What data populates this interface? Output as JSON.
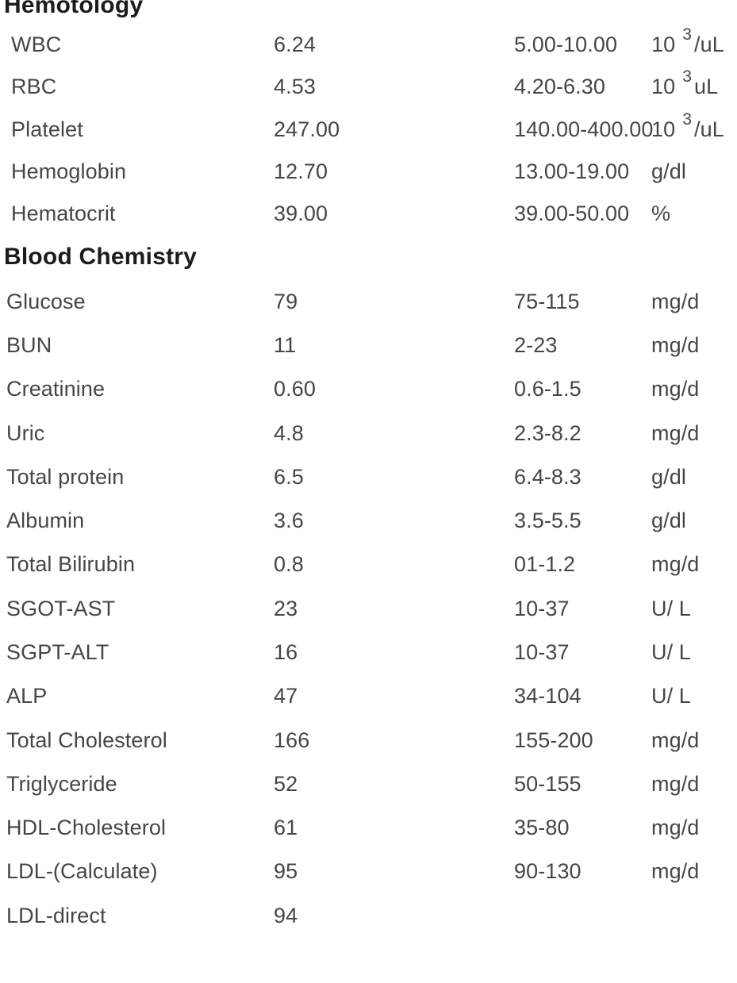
{
  "report": {
    "background": "#ffffff",
    "heading_color": "#1c1c1c",
    "text_color": "#464646",
    "sections": [
      {
        "id": "hematology",
        "heading": "Hemotology",
        "rows": [
          {
            "name": "WBC",
            "value": "6.24",
            "range": "5.00-10.00",
            "unit": {
              "base": "10",
              "sup": "3",
              "rest": "/uL"
            }
          },
          {
            "name": "RBC",
            "value": "4.53",
            "range": "4.20-6.30",
            "unit": {
              "base": "10",
              "sup": "3",
              "rest": "uL"
            }
          },
          {
            "name": "Platelet",
            "value": "247.00",
            "range": "140.00-400.00",
            "unit": {
              "base": "10",
              "sup": "3",
              "rest": "/uL"
            }
          },
          {
            "name": "Hemoglobin",
            "value": "12.70",
            "range": "13.00-19.00",
            "unit": "g/dl"
          },
          {
            "name": "Hematocrit",
            "value": "39.00",
            "range": "39.00-50.00",
            "unit": "%"
          }
        ]
      },
      {
        "id": "blood-chemistry",
        "heading": "Blood Chemistry",
        "rows": [
          {
            "name": "Glucose",
            "value": "79",
            "range": "75-115",
            "unit": "mg/d"
          },
          {
            "name": "BUN",
            "value": "11",
            "range": "2-23",
            "unit": "mg/d"
          },
          {
            "name": "Creatinine",
            "value": "0.60",
            "range": "0.6-1.5",
            "unit": "mg/d"
          },
          {
            "name": "Uric",
            "value": "4.8",
            "range": "2.3-8.2",
            "unit": "mg/d"
          },
          {
            "name": "Total protein",
            "value": "6.5",
            "range": "6.4-8.3",
            "unit": "g/dl"
          },
          {
            "name": "Albumin",
            "value": "3.6",
            "range": "3.5-5.5",
            "unit": "g/dl"
          },
          {
            "name": "Total Bilirubin",
            "value": "0.8",
            "range": "01-1.2",
            "unit": "mg/d"
          },
          {
            "name": "SGOT-AST",
            "value": "23",
            "range": "10-37",
            "unit": "U/ L"
          },
          {
            "name": "SGPT-ALT",
            "value": "16",
            "range": "10-37",
            "unit": "U/ L"
          },
          {
            "name": "ALP",
            "value": "47",
            "range": "34-104",
            "unit": "U/ L"
          },
          {
            "name": "Total Cholesterol",
            "value": "166",
            "range": "155-200",
            "unit": "mg/d"
          },
          {
            "name": "Triglyceride",
            "value": "52",
            "range": "50-155",
            "unit": "mg/d"
          },
          {
            "name": "HDL-Cholesterol",
            "value": "61",
            "range": "35-80",
            "unit": "mg/d"
          },
          {
            "name": "LDL-(Calculate)",
            "value": "95",
            "range": "90-130",
            "unit": "mg/d"
          },
          {
            "name": "LDL-direct",
            "value": "94",
            "range": "",
            "unit": ""
          }
        ]
      }
    ]
  }
}
